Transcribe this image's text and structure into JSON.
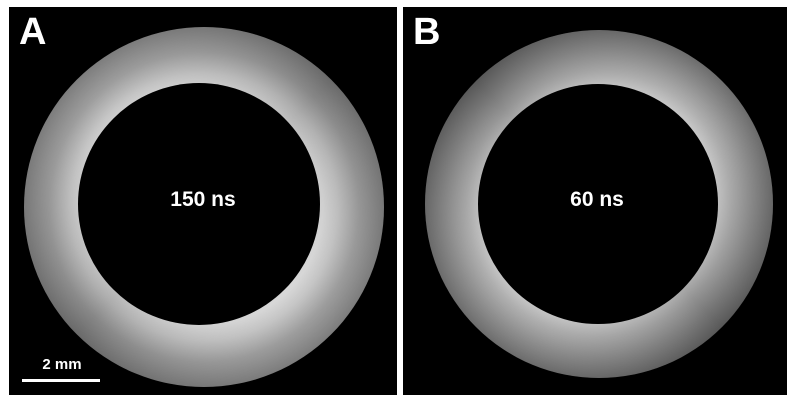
{
  "panels": [
    {
      "letter": "A",
      "time_label": "150 ns",
      "scale_bar": "2 mm"
    },
    {
      "letter": "B",
      "time_label": "60 ns"
    }
  ],
  "colors": {
    "background": "#000000",
    "ring_bright": "#ffffff",
    "ring_dim": "#8a8a8a",
    "text": "#ffffff"
  }
}
